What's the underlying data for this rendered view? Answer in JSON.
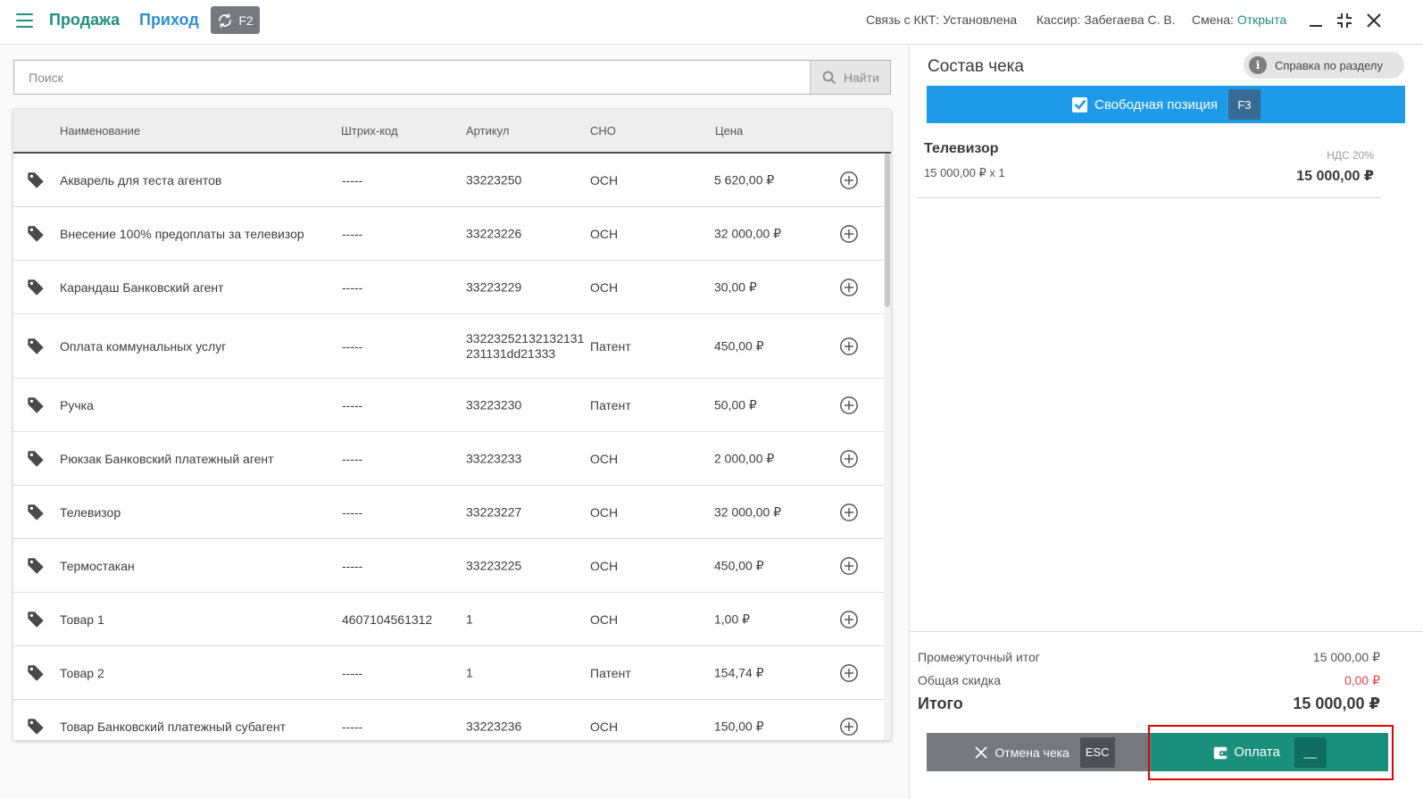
{
  "topbar": {
    "sale_label": "Продажа",
    "income_label": "Приход",
    "sync_key": "F2",
    "kkt_status": "Связь с ККТ: Установлена",
    "cashier": "Кассир: Забегаева С. В.",
    "shift_label": "Смена:",
    "shift_value": "Открыта"
  },
  "search": {
    "placeholder": "Поиск",
    "button_label": "Найти"
  },
  "table": {
    "headers": {
      "name": "Наименование",
      "barcode": "Штрих-код",
      "article": "Артикул",
      "sno": "СНО",
      "price": "Цена"
    },
    "rows": [
      {
        "name": "Акварель для теста агентов",
        "barcode": "-----",
        "article": "33223250",
        "sno": "ОСН",
        "price": "5 620,00 ₽"
      },
      {
        "name": "Внесение 100% предоплаты за телевизор",
        "barcode": "-----",
        "article": "33223226",
        "sno": "ОСН",
        "price": "32 000,00 ₽"
      },
      {
        "name": "Карандаш Банковский агент",
        "barcode": "-----",
        "article": "33223229",
        "sno": "ОСН",
        "price": "30,00 ₽"
      },
      {
        "name": "Оплата коммунальных услуг",
        "barcode": "-----",
        "article": "33223252132132131231131dd21333",
        "sno": "Патент",
        "price": "450,00 ₽"
      },
      {
        "name": "Ручка",
        "barcode": "-----",
        "article": "33223230",
        "sno": "Патент",
        "price": "50,00 ₽"
      },
      {
        "name": "Рюкзак Банковский платежный агент",
        "barcode": "-----",
        "article": "33223233",
        "sno": "ОСН",
        "price": "2 000,00 ₽"
      },
      {
        "name": "Телевизор",
        "barcode": "-----",
        "article": "33223227",
        "sno": "ОСН",
        "price": "32 000,00 ₽"
      },
      {
        "name": "Термостакан",
        "barcode": "-----",
        "article": "33223225",
        "sno": "ОСН",
        "price": "450,00 ₽"
      },
      {
        "name": "Товар 1",
        "barcode": "4607104561312",
        "article": "1",
        "sno": "ОСН",
        "price": "1,00 ₽"
      },
      {
        "name": "Товар 2",
        "barcode": "-----",
        "article": "1",
        "sno": "Патент",
        "price": "154,74 ₽"
      },
      {
        "name": "Товар Банковский платежный субагент",
        "barcode": "-----",
        "article": "33223236",
        "sno": "ОСН",
        "price": "150,00 ₽"
      }
    ]
  },
  "receipt": {
    "title": "Состав чека",
    "help_label": "Справка по разделу",
    "free_position_label": "Свободная позиция",
    "free_position_key": "F3",
    "items": [
      {
        "name": "Телевизор",
        "qty_line": "15 000,00 ₽ x 1",
        "vat": "НДС 20%",
        "sum": "15 000,00 ₽"
      }
    ],
    "subtotal_label": "Промежуточный итог",
    "subtotal_value": "15 000,00 ₽",
    "discount_label": "Общая скидка",
    "discount_value": "0,00 ₽",
    "total_label": "Итого",
    "total_value": "15 000,00 ₽",
    "cancel_label": "Отмена чека",
    "cancel_key": "ESC",
    "pay_label": "Оплата",
    "pay_key": "__"
  },
  "colors": {
    "accent_green": "#1a8f7b",
    "accent_blue": "#1e9be8",
    "highlight_red": "#e00000"
  }
}
